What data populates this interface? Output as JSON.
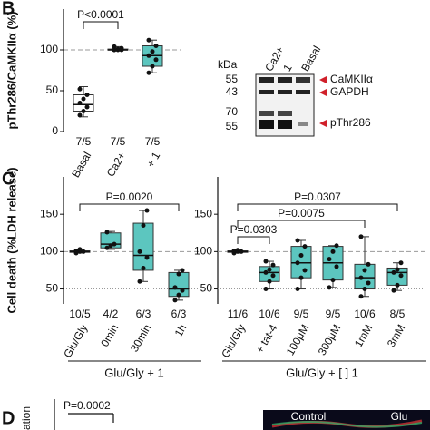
{
  "panels": {
    "b": "B",
    "c": "C",
    "d": "D"
  },
  "blot": {
    "unit": "kDa",
    "markers": [
      "55",
      "43",
      "70",
      "55"
    ],
    "lanes": [
      "Ca2+",
      "1",
      "Basal"
    ],
    "bands": [
      "CaMKIIα",
      "GAPDH",
      "pThr286"
    ]
  },
  "panel_d": {
    "annotation": "P=0.0002",
    "ylabel": "ation",
    "images": [
      "Control",
      "Glu"
    ]
  },
  "chart_data": [
    {
      "type": "box",
      "ylabel": "pThr286/CaMKIIα (%)",
      "ylim": [
        0,
        150
      ],
      "yticks": [
        0,
        50,
        100
      ],
      "ref_lines": [
        100
      ],
      "categories": [
        "Basal",
        "Ca2+",
        "+ 1"
      ],
      "counts": [
        "7/5",
        "7/5",
        "7/5"
      ],
      "colors": [
        "#ffffff",
        "#ffffff",
        "#5cc6bf"
      ],
      "boxes": [
        {
          "min": 18,
          "q1": 25,
          "median": 33,
          "q3": 45,
          "max": 55,
          "points": [
            20,
            25,
            30,
            35,
            40,
            45,
            52
          ]
        },
        {
          "min": 100,
          "q1": 100,
          "median": 100,
          "q3": 101,
          "max": 104,
          "points": [
            100,
            100,
            100,
            100,
            101,
            102,
            104
          ]
        },
        {
          "min": 72,
          "q1": 80,
          "median": 93,
          "q3": 105,
          "max": 112,
          "points": [
            72,
            80,
            88,
            93,
            98,
            105,
            112
          ]
        }
      ],
      "annotations": [
        {
          "text": "P<0.0001",
          "from": 0,
          "to": 1
        }
      ]
    },
    {
      "type": "box",
      "ylabel": "Cell death (%LDH release)",
      "xlabel": "Glu/Gly + 1",
      "ylim": [
        30,
        200
      ],
      "yticks": [
        50,
        100,
        150
      ],
      "ref_lines": [
        100,
        50
      ],
      "categories": [
        "Glu/Gly",
        "0min",
        "30min",
        "1h"
      ],
      "counts": [
        "10/5",
        "4/2",
        "6/3",
        "6/3"
      ],
      "colors": [
        "#111111",
        "#5cc6bf",
        "#5cc6bf",
        "#5cc6bf"
      ],
      "boxes": [
        {
          "min": 98,
          "q1": 99,
          "median": 100,
          "q3": 101,
          "max": 103,
          "points": [
            98,
            100,
            100,
            101,
            103
          ]
        },
        {
          "min": 103,
          "q1": 105,
          "median": 110,
          "q3": 125,
          "max": 127,
          "points": [
            105,
            108,
            110,
            126
          ]
        },
        {
          "min": 60,
          "q1": 75,
          "median": 95,
          "q3": 138,
          "max": 155,
          "points": [
            60,
            78,
            92,
            100,
            135,
            155
          ]
        },
        {
          "min": 35,
          "q1": 40,
          "median": 50,
          "q3": 72,
          "max": 75,
          "points": [
            35,
            42,
            48,
            52,
            70,
            75
          ]
        }
      ],
      "annotations": [
        {
          "text": "P=0.0020",
          "from": 0,
          "to": 3
        }
      ]
    },
    {
      "type": "box",
      "xlabel": "Glu/Gly + [ ] 1",
      "ylim": [
        30,
        200
      ],
      "yticks": [
        50,
        100,
        150
      ],
      "ref_lines": [
        100,
        50
      ],
      "categories": [
        "Glu/Gly",
        "+ tat-4",
        "100μM",
        "300μM",
        "1mM",
        "3mM"
      ],
      "counts": [
        "11/6",
        "10/6",
        "9/5",
        "9/5",
        "10/6",
        "8/5"
      ],
      "colors": [
        "#111111",
        "#5cc6bf",
        "#5cc6bf",
        "#5cc6bf",
        "#5cc6bf",
        "#5cc6bf"
      ],
      "boxes": [
        {
          "min": 98,
          "q1": 99,
          "median": 100,
          "q3": 101,
          "max": 102,
          "points": [
            98,
            100,
            100,
            101,
            102
          ]
        },
        {
          "min": 50,
          "q1": 60,
          "median": 72,
          "q3": 80,
          "max": 87,
          "points": [
            50,
            60,
            68,
            72,
            76,
            82,
            87
          ]
        },
        {
          "min": 50,
          "q1": 65,
          "median": 85,
          "q3": 107,
          "max": 115,
          "points": [
            50,
            65,
            75,
            85,
            95,
            107,
            115
          ]
        },
        {
          "min": 52,
          "q1": 62,
          "median": 85,
          "q3": 107,
          "max": 108,
          "points": [
            52,
            62,
            80,
            90,
            100,
            108
          ]
        },
        {
          "min": 40,
          "q1": 50,
          "median": 65,
          "q3": 83,
          "max": 120,
          "points": [
            40,
            50,
            58,
            65,
            75,
            83,
            120
          ]
        },
        {
          "min": 48,
          "q1": 55,
          "median": 72,
          "q3": 78,
          "max": 85,
          "points": [
            48,
            55,
            68,
            72,
            76,
            85
          ]
        }
      ],
      "annotations": [
        {
          "text": "P=0.0303",
          "from": 0,
          "to": 1
        },
        {
          "text": "P=0.0075",
          "from": 0,
          "to": 4
        },
        {
          "text": "P=0.0307",
          "from": 0,
          "to": 5
        }
      ]
    }
  ]
}
